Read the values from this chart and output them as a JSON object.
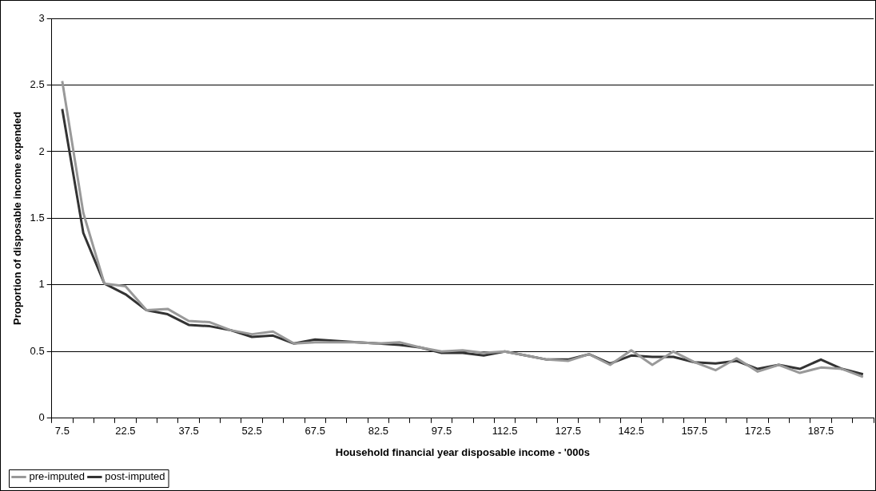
{
  "chart_data": {
    "type": "line",
    "xlabel": "Household financial year disposable income - '000s",
    "ylabel": "Proportion of disposable income expended",
    "categories": [
      "7.5",
      null,
      null,
      "22.5",
      null,
      null,
      "37.5",
      null,
      null,
      "52.5",
      null,
      null,
      "67.5",
      null,
      null,
      "82.5",
      null,
      null,
      "97.5",
      null,
      null,
      "112.5",
      null,
      null,
      "127.5",
      null,
      null,
      "142.5",
      null,
      null,
      "157.5",
      null,
      null,
      "172.5",
      null,
      null,
      "187.5",
      null,
      null
    ],
    "series": [
      {
        "name": "pre-imputed",
        "color": "#999999",
        "values": [
          2.53,
          1.54,
          1.01,
          0.99,
          0.81,
          0.82,
          0.73,
          0.72,
          0.66,
          0.63,
          0.65,
          0.56,
          0.57,
          0.57,
          0.57,
          0.56,
          0.57,
          0.53,
          0.5,
          0.51,
          0.49,
          0.5,
          0.47,
          0.44,
          0.43,
          0.48,
          0.4,
          0.51,
          0.4,
          0.5,
          0.42,
          0.36,
          0.45,
          0.35,
          0.4,
          0.34,
          0.38,
          0.37,
          0.31
        ]
      },
      {
        "name": "post-imputed",
        "color": "#333333",
        "values": [
          2.32,
          1.39,
          1.01,
          0.93,
          0.81,
          0.78,
          0.7,
          0.69,
          0.66,
          0.61,
          0.62,
          0.56,
          0.59,
          0.58,
          0.57,
          0.56,
          0.55,
          0.53,
          0.49,
          0.49,
          0.47,
          0.5,
          0.47,
          0.44,
          0.44,
          0.48,
          0.41,
          0.47,
          0.46,
          0.46,
          0.42,
          0.41,
          0.43,
          0.37,
          0.4,
          0.37,
          0.44,
          0.37,
          0.33
        ]
      }
    ],
    "ylim": [
      0,
      3
    ],
    "yticks": [
      0,
      0.5,
      1,
      1.5,
      2,
      2.5,
      3
    ],
    "grid": "y",
    "legend": "bottom left",
    "marker": "none",
    "line_style": "solid"
  }
}
